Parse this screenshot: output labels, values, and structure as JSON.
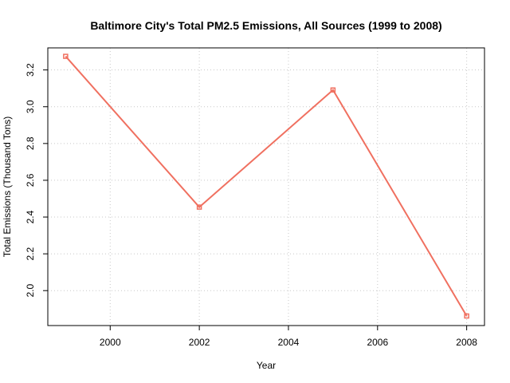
{
  "chart_data": {
    "type": "line",
    "title": "Baltimore City's Total PM2.5 Emissions, All Sources (1999 to 2008)",
    "xlabel": "Year",
    "ylabel": "Total Emissions (Thousand Tons)",
    "x": [
      1999,
      2002,
      2005,
      2008
    ],
    "series": [
      {
        "name": "Total Emissions",
        "values": [
          3.274,
          2.454,
          3.091,
          1.862
        ],
        "color": "#f07060"
      }
    ],
    "xlim": [
      1998.6,
      2008.4
    ],
    "ylim": [
      1.81,
      3.32
    ],
    "xticks": [
      2000,
      2002,
      2004,
      2006,
      2008
    ],
    "yticks": [
      2.0,
      2.2,
      2.4,
      2.6,
      2.8,
      3.0,
      3.2
    ],
    "ytick_labels": [
      "2.0",
      "2.2",
      "2.4",
      "2.6",
      "2.8",
      "3.0",
      "3.2"
    ],
    "grid": true
  }
}
